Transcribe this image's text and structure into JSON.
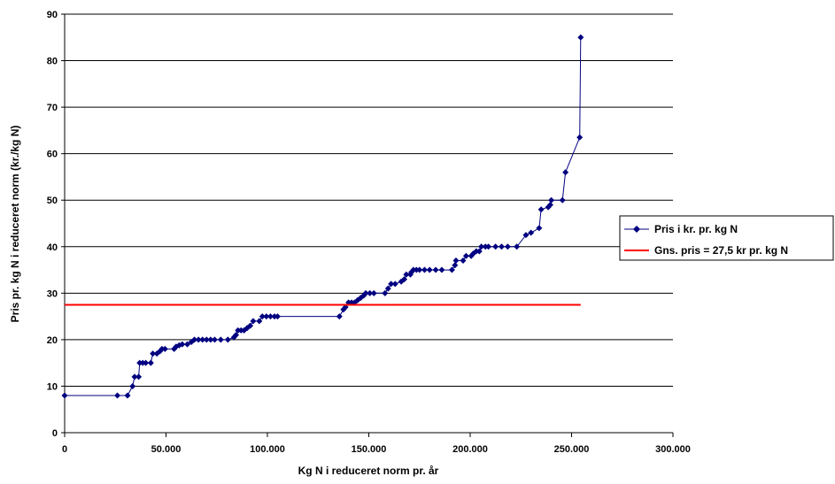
{
  "chart_data": {
    "type": "line",
    "xlabel": "Kg N i reduceret norm pr. år",
    "ylabel": "Pris pr. kg N i reduceret norm (kr./kg N)",
    "xlim": [
      0,
      300000
    ],
    "ylim": [
      0,
      90
    ],
    "x_ticks": [
      0,
      50000,
      100000,
      150000,
      200000,
      250000,
      300000
    ],
    "x_tick_labels": [
      "0",
      "50.000",
      "100.000",
      "150.000",
      "200.000",
      "250.000",
      "300.000"
    ],
    "y_ticks": [
      0,
      10,
      20,
      30,
      40,
      50,
      60,
      70,
      80,
      90
    ],
    "y_tick_labels": [
      "0",
      "10",
      "20",
      "30",
      "40",
      "50",
      "60",
      "70",
      "80",
      "90"
    ],
    "grid": "horizontal",
    "legend_position": "right",
    "series": [
      {
        "name": "Pris i kr. pr. kg N",
        "color": "#000080",
        "marker": "diamond",
        "points": [
          [
            0,
            8
          ],
          [
            26000,
            8
          ],
          [
            31000,
            8
          ],
          [
            33500,
            10
          ],
          [
            34500,
            12
          ],
          [
            36500,
            12
          ],
          [
            37000,
            15
          ],
          [
            38500,
            15
          ],
          [
            40000,
            15
          ],
          [
            42500,
            15
          ],
          [
            43500,
            17
          ],
          [
            45500,
            17
          ],
          [
            47000,
            17.5
          ],
          [
            48000,
            18
          ],
          [
            49500,
            18
          ],
          [
            54000,
            18
          ],
          [
            55000,
            18.5
          ],
          [
            56500,
            18.8
          ],
          [
            58000,
            19
          ],
          [
            60500,
            19
          ],
          [
            62500,
            19.5
          ],
          [
            64000,
            20
          ],
          [
            66000,
            20
          ],
          [
            68000,
            20
          ],
          [
            70000,
            20
          ],
          [
            72000,
            20
          ],
          [
            74000,
            20
          ],
          [
            77000,
            20
          ],
          [
            80500,
            20
          ],
          [
            83500,
            20.5
          ],
          [
            84500,
            21
          ],
          [
            85500,
            22
          ],
          [
            87000,
            22
          ],
          [
            88500,
            22
          ],
          [
            90000,
            22.5
          ],
          [
            91500,
            23
          ],
          [
            93000,
            24
          ],
          [
            96000,
            24
          ],
          [
            97500,
            25
          ],
          [
            99500,
            25
          ],
          [
            101500,
            25
          ],
          [
            103500,
            25
          ],
          [
            105000,
            25
          ],
          [
            135500,
            25
          ],
          [
            137500,
            26.5
          ],
          [
            138500,
            27
          ],
          [
            140000,
            28
          ],
          [
            141500,
            28
          ],
          [
            143000,
            28
          ],
          [
            144500,
            28.5
          ],
          [
            146000,
            29
          ],
          [
            147500,
            29.5
          ],
          [
            148500,
            30
          ],
          [
            150500,
            30
          ],
          [
            152500,
            30
          ],
          [
            158000,
            30
          ],
          [
            159500,
            31
          ],
          [
            161000,
            32
          ],
          [
            163000,
            32
          ],
          [
            166000,
            32.5
          ],
          [
            167500,
            33
          ],
          [
            168500,
            34
          ],
          [
            170500,
            34
          ],
          [
            171000,
            34.5
          ],
          [
            172000,
            35
          ],
          [
            173500,
            35
          ],
          [
            175000,
            35
          ],
          [
            177500,
            35
          ],
          [
            180000,
            35
          ],
          [
            183000,
            35
          ],
          [
            186000,
            35
          ],
          [
            191000,
            35
          ],
          [
            192500,
            36
          ],
          [
            193000,
            37
          ],
          [
            196500,
            37
          ],
          [
            198000,
            38
          ],
          [
            200500,
            38
          ],
          [
            201500,
            38.5
          ],
          [
            203000,
            39
          ],
          [
            204500,
            39
          ],
          [
            205500,
            40
          ],
          [
            207500,
            40
          ],
          [
            209000,
            40
          ],
          [
            212500,
            40
          ],
          [
            215500,
            40
          ],
          [
            218500,
            40
          ],
          [
            223000,
            40
          ],
          [
            227500,
            42.5
          ],
          [
            230000,
            43
          ],
          [
            234000,
            44
          ],
          [
            235000,
            48
          ],
          [
            238500,
            48.5
          ],
          [
            239500,
            49
          ],
          [
            240000,
            50
          ],
          [
            245500,
            50
          ],
          [
            247000,
            56
          ],
          [
            254000,
            63.5
          ],
          [
            254500,
            85
          ]
        ]
      },
      {
        "name": "Gns. pris = 27,5 kr pr. kg N",
        "color": "#ff0000",
        "marker": "none",
        "points": [
          [
            0,
            27.5
          ],
          [
            254500,
            27.5
          ]
        ]
      }
    ]
  }
}
